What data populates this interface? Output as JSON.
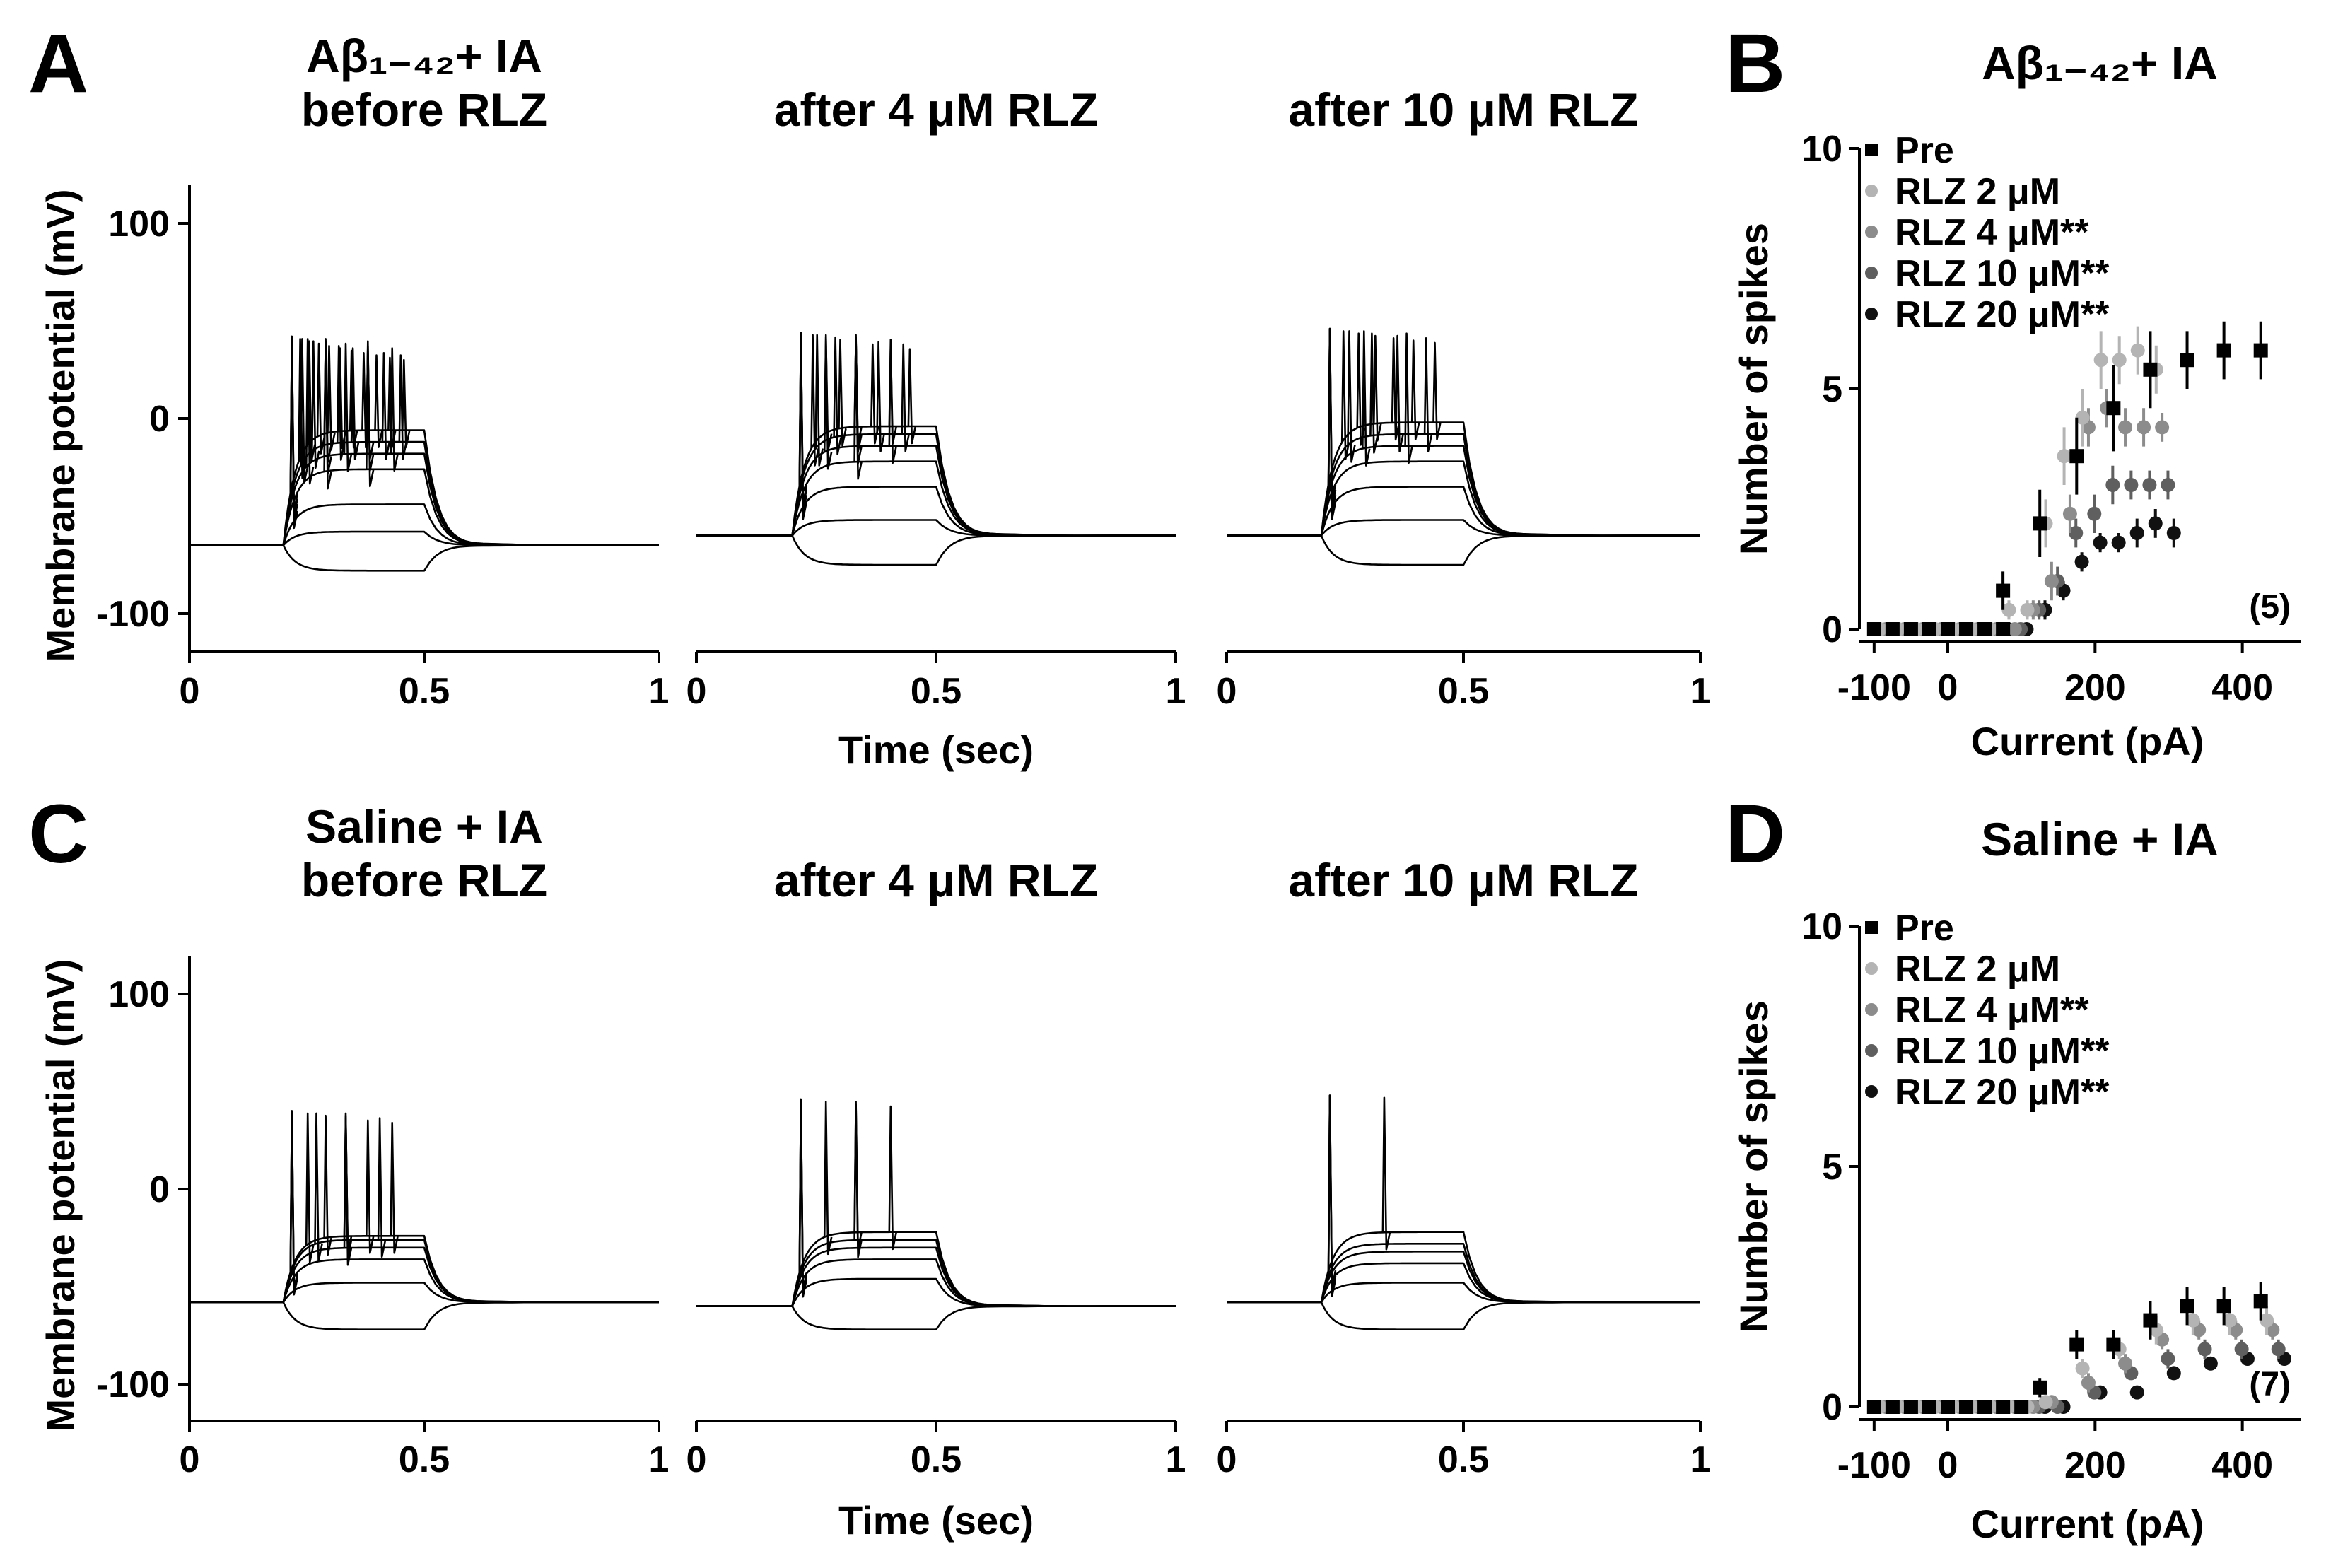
{
  "panels": [
    {
      "letter": "A",
      "traces": [
        {
          "title_lines": [
            "Aβ₁₋₄₂+ IA",
            "before RLZ"
          ],
          "xticks": [
            "0",
            "0.5",
            "1"
          ],
          "xlabel": "",
          "baseline_mV": -65,
          "step_mV": [
            -78,
            -58,
            -44,
            -26,
            -18,
            -12,
            -6
          ],
          "spike_counts": [
            0,
            0,
            0,
            3,
            6,
            9,
            11
          ],
          "spike_peak_mV": 42
        },
        {
          "title_lines": [
            "after 4 μM RLZ"
          ],
          "xticks": [
            "0",
            "0.5",
            "1"
          ],
          "xlabel": "Time (sec)",
          "baseline_mV": -60,
          "step_mV": [
            -75,
            -52,
            -35,
            -22,
            -14,
            -8,
            -4
          ],
          "spike_counts": [
            0,
            0,
            0,
            2,
            4,
            6,
            8
          ],
          "spike_peak_mV": 44
        },
        {
          "title_lines": [
            "after 10 μM RLZ"
          ],
          "xticks": [
            "0",
            "0.5",
            "1"
          ],
          "xlabel": "",
          "baseline_mV": -60,
          "step_mV": [
            -75,
            -52,
            -35,
            -22,
            -14,
            -8,
            -2
          ],
          "spike_counts": [
            0,
            0,
            0,
            1,
            3,
            5,
            7
          ],
          "spike_peak_mV": 46
        }
      ],
      "ylabel": "Membrane potential (mV)",
      "yticks": [
        "100",
        "0",
        "-100"
      ]
    },
    {
      "letter": "C",
      "traces": [
        {
          "title_lines": [
            "Saline + IA",
            "before RLZ"
          ],
          "xticks": [
            "0",
            "0.5",
            "1"
          ],
          "xlabel": "",
          "baseline_mV": -58,
          "step_mV": [
            -72,
            -48,
            -36,
            -30,
            -26,
            -24
          ],
          "spike_counts": [
            0,
            0,
            0,
            2,
            4,
            6
          ],
          "spike_peak_mV": 40
        },
        {
          "title_lines": [
            "after 4 μM RLZ"
          ],
          "xticks": [
            "0",
            "0.5",
            "1"
          ],
          "xlabel": "Time (sec)",
          "baseline_mV": -60,
          "step_mV": [
            -72,
            -46,
            -36,
            -30,
            -26,
            -22
          ],
          "spike_counts": [
            0,
            0,
            0,
            1,
            2,
            4
          ],
          "spike_peak_mV": 46
        },
        {
          "title_lines": [
            "after 10 μM RLZ"
          ],
          "xticks": [
            "0",
            "0.5",
            "1"
          ],
          "xlabel": "",
          "baseline_mV": -58,
          "step_mV": [
            -72,
            -48,
            -38,
            -32,
            -28,
            -22
          ],
          "spike_counts": [
            0,
            0,
            0,
            1,
            1,
            2
          ],
          "spike_peak_mV": 48
        }
      ],
      "ylabel": "Membrane potential (mV)",
      "yticks": [
        "100",
        "0",
        "-100"
      ]
    }
  ],
  "legend_labels": [
    "Pre",
    "RLZ 2 μM",
    "RLZ 4 μM**",
    "RLZ 10 μM**",
    "RLZ 20 μM**"
  ],
  "series_colors": [
    "#000000",
    "#b4b4b4",
    "#8c8c8c",
    "#5f5f5f",
    "#111111"
  ],
  "chart_data": [
    {
      "type": "scatter",
      "panel": "B",
      "title": "Aβ₁₋₄₂+ IA",
      "xlabel": "Current (pA)",
      "ylabel": "Number of spikes",
      "xticks": [
        "-100",
        "0",
        "200",
        "400"
      ],
      "yticks": [
        "0",
        "5",
        "10"
      ],
      "xlim": [
        -120,
        480
      ],
      "ylim": [
        0,
        10
      ],
      "n_label": "(5)",
      "legend_position": "top-left",
      "x": [
        -100,
        -75,
        -50,
        -25,
        0,
        25,
        50,
        75,
        100,
        125,
        150,
        175,
        200,
        225,
        250,
        275,
        300,
        325,
        350,
        375,
        400
      ],
      "series": [
        {
          "name": "Pre",
          "marker": "square",
          "values": [
            0,
            0,
            0,
            0,
            0,
            0,
            0,
            0,
            0.8,
            2.2,
            3.6,
            4.6,
            5.4,
            5.6,
            5.8,
            5.8
          ],
          "x": [
            -100,
            -75,
            -50,
            -25,
            0,
            25,
            50,
            75,
            75,
            125,
            175,
            225,
            275,
            325,
            375,
            425
          ],
          "err": [
            0,
            0,
            0,
            0,
            0,
            0,
            0,
            0,
            0.4,
            0.7,
            0.8,
            0.9,
            0.8,
            0.6,
            0.6,
            0.6
          ]
        },
        {
          "name": "RLZ 2 μM",
          "marker": "circle",
          "x": [
            -92,
            -67,
            -42,
            -17,
            8,
            33,
            58,
            83,
            108,
            133,
            158,
            183,
            208,
            233,
            258,
            283
          ],
          "values": [
            0,
            0,
            0,
            0,
            0,
            0,
            0,
            0.4,
            0.4,
            2.2,
            3.6,
            4.4,
            5.6,
            5.6,
            5.8,
            5.4
          ],
          "err": [
            0,
            0,
            0,
            0,
            0,
            0,
            0,
            0.2,
            0.2,
            0.5,
            0.6,
            0.6,
            0.6,
            0.5,
            0.5,
            0.5
          ]
        },
        {
          "name": "RLZ 4 μM**",
          "marker": "circle",
          "x": [
            -84,
            -59,
            -34,
            -9,
            16,
            41,
            66,
            91,
            116,
            141,
            166,
            191,
            216,
            241,
            266,
            291
          ],
          "values": [
            0,
            0,
            0,
            0,
            0,
            0,
            0,
            0,
            0.4,
            1.0,
            2.4,
            4.2,
            4.6,
            4.2,
            4.2,
            4.2
          ],
          "err": [
            0,
            0,
            0,
            0,
            0,
            0,
            0,
            0,
            0.2,
            0.4,
            0.4,
            0.4,
            0.4,
            0.4,
            0.4,
            0.3
          ]
        },
        {
          "name": "RLZ 10 μM**",
          "marker": "circle",
          "x": [
            -76,
            -51,
            -26,
            -1,
            24,
            49,
            74,
            99,
            124,
            149,
            174,
            199,
            224,
            249,
            274,
            299
          ],
          "values": [
            0,
            0,
            0,
            0,
            0,
            0,
            0,
            0,
            0.4,
            1.0,
            2.0,
            2.4,
            3.0,
            3.0,
            3.0,
            3.0
          ],
          "err": [
            0,
            0,
            0,
            0,
            0,
            0,
            0,
            0,
            0.2,
            0.3,
            0.3,
            0.4,
            0.4,
            0.3,
            0.3,
            0.3
          ]
        },
        {
          "name": "RLZ 20 μM**",
          "marker": "circle",
          "x": [
            -68,
            -43,
            -18,
            7,
            32,
            57,
            82,
            107,
            132,
            157,
            182,
            207,
            232,
            257,
            282,
            307
          ],
          "values": [
            0,
            0,
            0,
            0,
            0,
            0,
            0,
            0,
            0.4,
            0.8,
            1.4,
            1.8,
            1.8,
            2.0,
            2.2,
            2.0
          ],
          "err": [
            0,
            0,
            0,
            0,
            0,
            0,
            0,
            0,
            0.2,
            0.2,
            0.2,
            0.2,
            0.2,
            0.3,
            0.3,
            0.3
          ]
        }
      ]
    },
    {
      "type": "scatter",
      "panel": "D",
      "title": "Saline + IA",
      "xlabel": "Current (pA)",
      "ylabel": "Number of spikes",
      "xticks": [
        "-100",
        "0",
        "200",
        "400"
      ],
      "yticks": [
        "0",
        "5",
        "10"
      ],
      "xlim": [
        -120,
        480
      ],
      "ylim": [
        0,
        10
      ],
      "n_label": "(7)",
      "legend_position": "top-left",
      "series": [
        {
          "name": "Pre",
          "marker": "square",
          "x": [
            -100,
            -75,
            -50,
            -25,
            0,
            25,
            50,
            75,
            100,
            125,
            175,
            225,
            275,
            325,
            375,
            425
          ],
          "values": [
            0,
            0,
            0,
            0,
            0,
            0,
            0,
            0,
            0,
            0.4,
            1.3,
            1.3,
            1.8,
            2.1,
            2.1,
            2.2
          ],
          "err": [
            0,
            0,
            0,
            0,
            0,
            0,
            0,
            0,
            0,
            0.2,
            0.3,
            0.3,
            0.4,
            0.4,
            0.4,
            0.4
          ]
        },
        {
          "name": "RLZ 2 μM",
          "marker": "circle",
          "x": [
            -92,
            -67,
            -42,
            -17,
            8,
            33,
            58,
            83,
            108,
            133,
            183,
            233,
            283,
            333,
            383,
            433
          ],
          "values": [
            0,
            0,
            0,
            0,
            0,
            0,
            0,
            0,
            0,
            0.1,
            0.8,
            1.2,
            1.6,
            1.8,
            1.8,
            1.8
          ],
          "err": [
            0,
            0,
            0,
            0,
            0,
            0,
            0,
            0,
            0,
            0.1,
            0.2,
            0.2,
            0.3,
            0.3,
            0.3,
            0.3
          ]
        },
        {
          "name": "RLZ 4 μM**",
          "marker": "circle",
          "x": [
            -84,
            -59,
            -34,
            -9,
            16,
            41,
            66,
            91,
            116,
            141,
            191,
            241,
            291,
            341,
            391,
            441
          ],
          "values": [
            0,
            0,
            0,
            0,
            0,
            0,
            0,
            0,
            0,
            0.1,
            0.5,
            0.9,
            1.4,
            1.6,
            1.6,
            1.6
          ],
          "err": [
            0,
            0,
            0,
            0,
            0,
            0,
            0,
            0,
            0,
            0.1,
            0.2,
            0.2,
            0.2,
            0.2,
            0.2,
            0.2
          ]
        },
        {
          "name": "RLZ 10 μM**",
          "marker": "circle",
          "x": [
            -76,
            -51,
            -26,
            -1,
            24,
            49,
            74,
            99,
            124,
            149,
            199,
            249,
            299,
            349,
            399,
            449
          ],
          "values": [
            0,
            0,
            0,
            0,
            0,
            0,
            0,
            0,
            0,
            0,
            0.3,
            0.7,
            1.0,
            1.2,
            1.2,
            1.2
          ],
          "err": [
            0,
            0,
            0,
            0,
            0,
            0,
            0,
            0,
            0,
            0,
            0.1,
            0.1,
            0.2,
            0.2,
            0.2,
            0.2
          ]
        },
        {
          "name": "RLZ 20 μM**",
          "marker": "circle",
          "x": [
            -68,
            -43,
            -18,
            7,
            32,
            57,
            82,
            107,
            132,
            157,
            207,
            257,
            307,
            357,
            407,
            457
          ],
          "values": [
            0,
            0,
            0,
            0,
            0,
            0,
            0,
            0,
            0,
            0,
            0.3,
            0.3,
            0.7,
            0.9,
            1.0,
            1.0
          ],
          "err": [
            0,
            0,
            0,
            0,
            0,
            0,
            0,
            0,
            0,
            0,
            0.1,
            0.1,
            0.1,
            0.1,
            0.1,
            0.1
          ]
        }
      ]
    }
  ]
}
